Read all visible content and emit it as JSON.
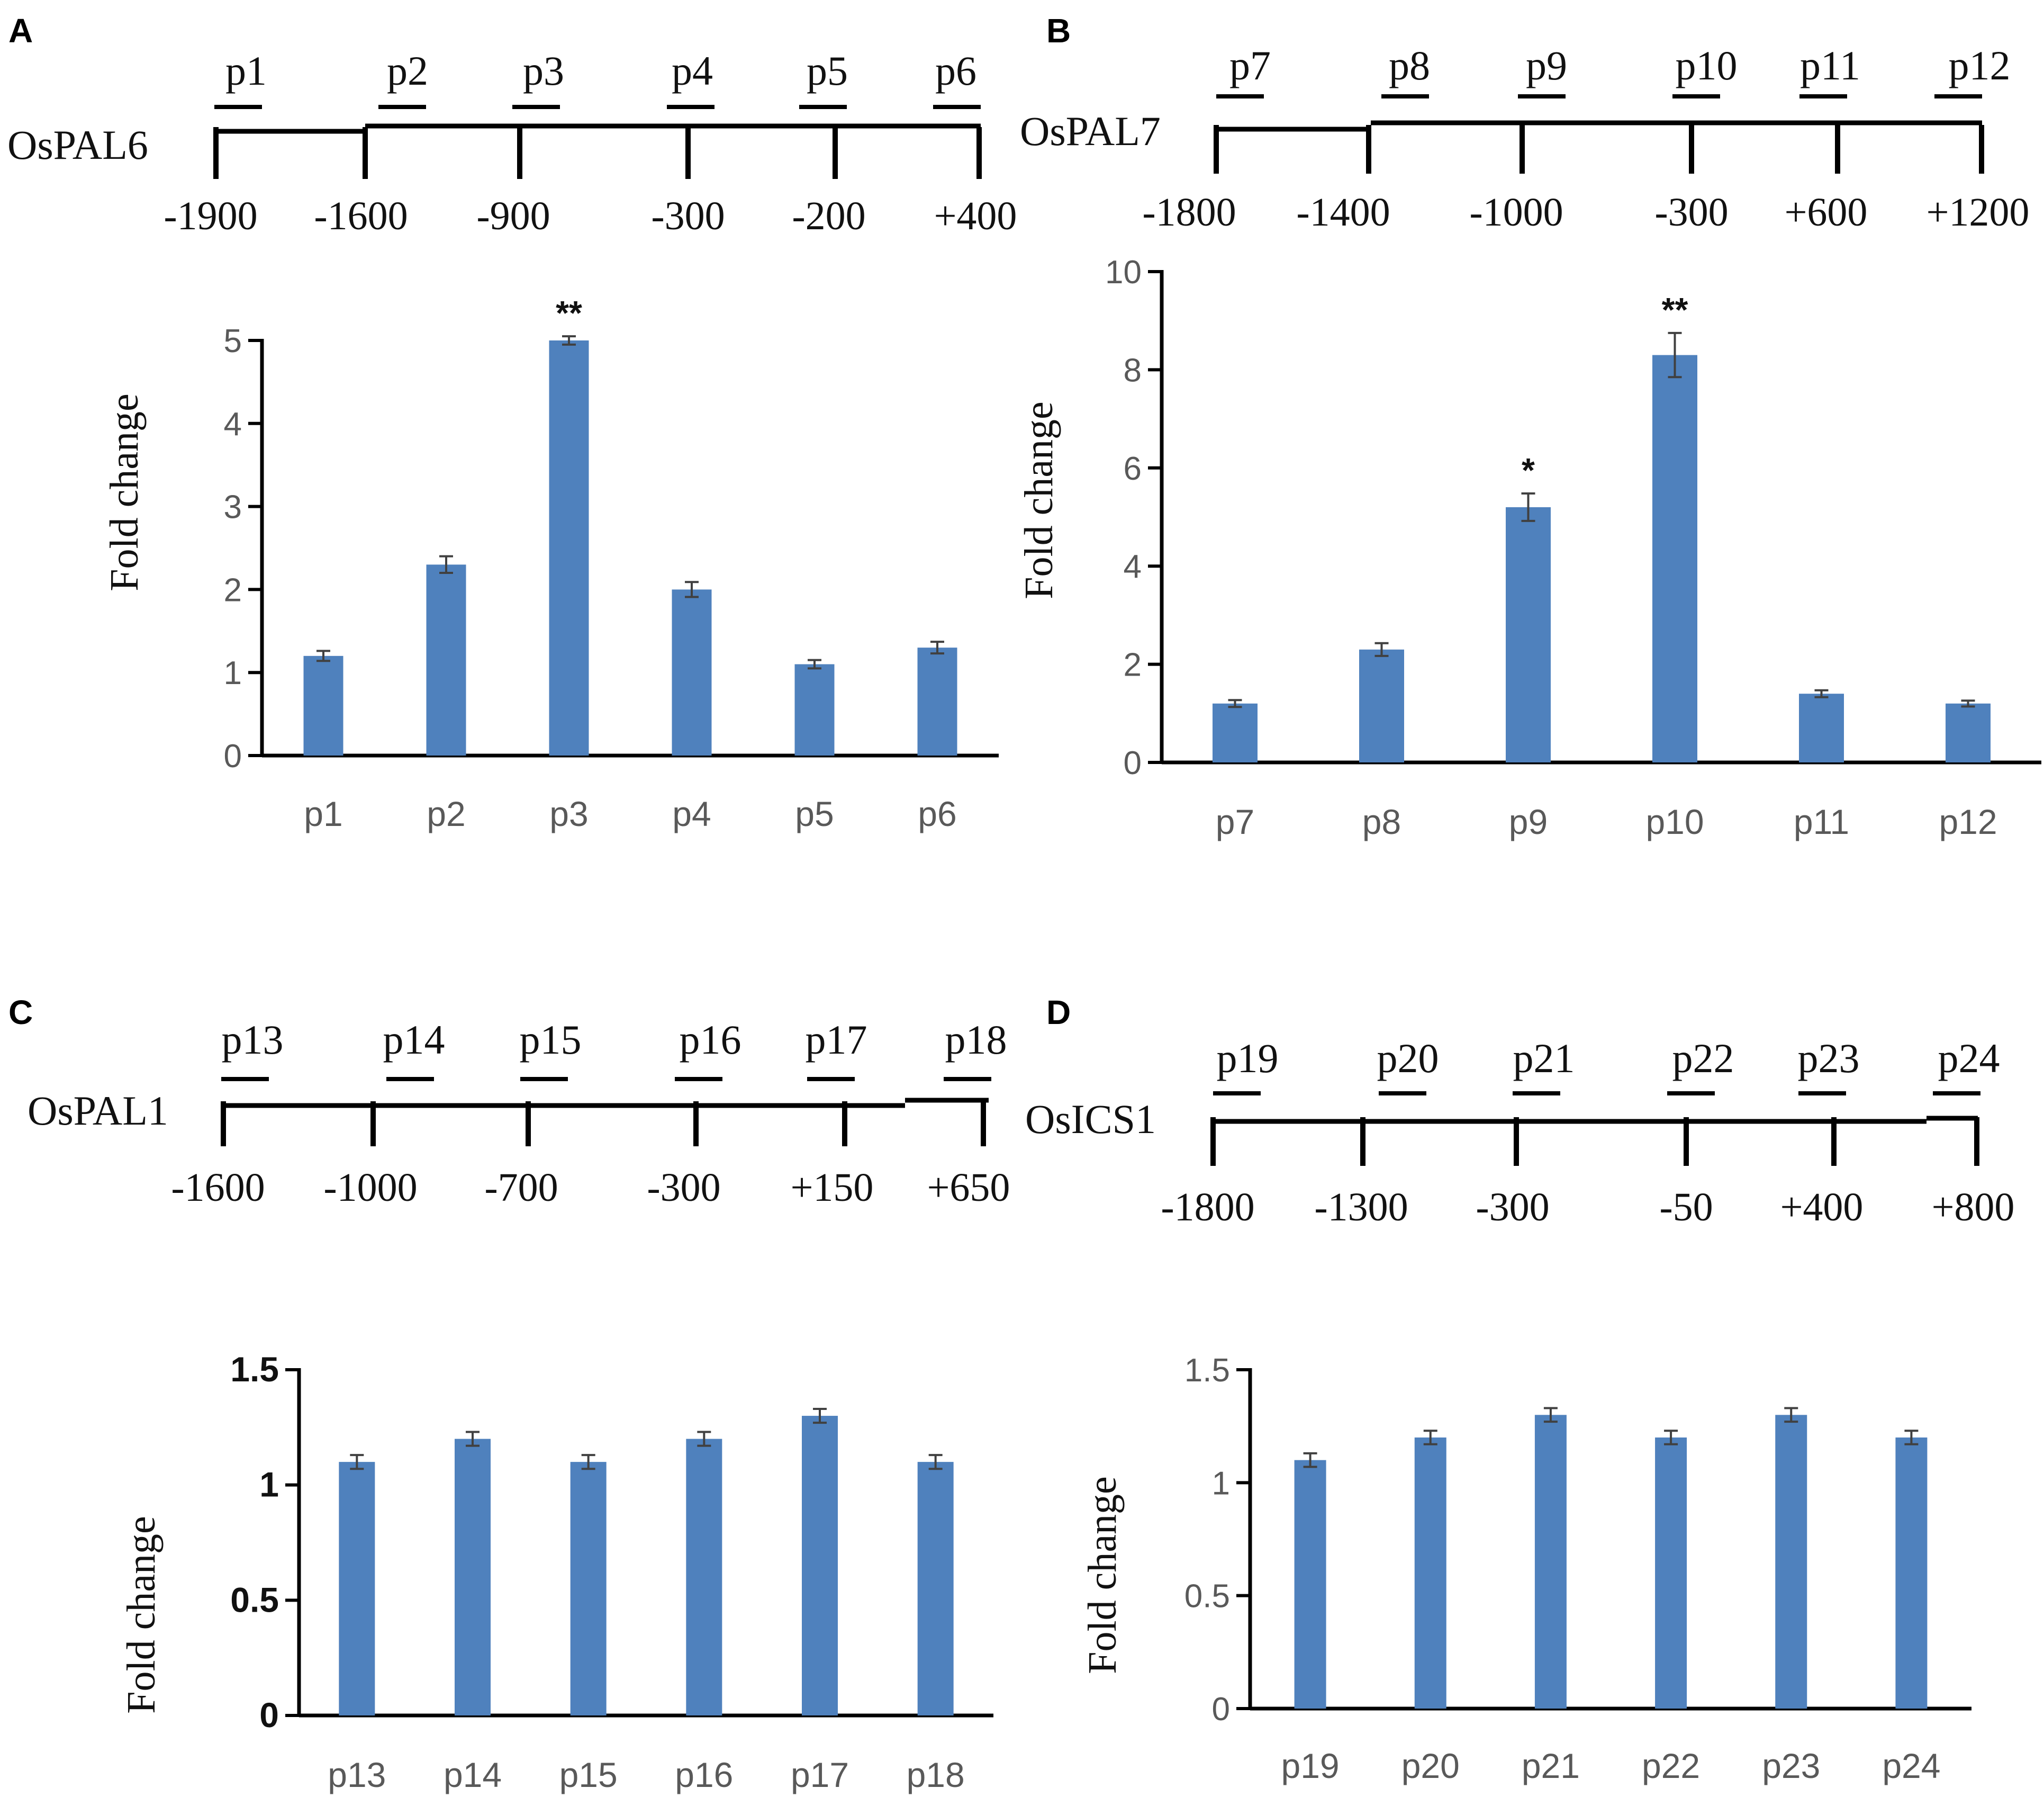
{
  "chart_data": [
    {
      "panel": "A",
      "type": "bar",
      "gene": "OsPAL6",
      "primers": [
        "p1",
        "p2",
        "p3",
        "p4",
        "p5",
        "p6"
      ],
      "positions": [
        "-1900",
        "-1600",
        "-900",
        "-300",
        "-200",
        "+400"
      ],
      "categories": [
        "p1",
        "p2",
        "p3",
        "p4",
        "p5",
        "p6"
      ],
      "values": [
        1.2,
        2.3,
        5.0,
        2.0,
        1.1,
        1.3
      ],
      "errors": [
        0.06,
        0.1,
        0.05,
        0.09,
        0.05,
        0.07
      ],
      "significance": [
        "",
        "",
        "**",
        "",
        "",
        ""
      ],
      "ylabel": "Fold change",
      "ylim": [
        0,
        5
      ],
      "yticks": [
        "0",
        "1",
        "2",
        "3",
        "4",
        "5"
      ],
      "bar_color": "#4f81bd"
    },
    {
      "panel": "B",
      "type": "bar",
      "gene": "OsPAL7",
      "primers": [
        "p7",
        "p8",
        "p9",
        "p10",
        "p11",
        "p12"
      ],
      "positions": [
        "-1800",
        "-1400",
        "-1000",
        "-300",
        "+600",
        "+1200"
      ],
      "categories": [
        "p7",
        "p8",
        "p9",
        "p10",
        "p11",
        "p12"
      ],
      "values": [
        1.2,
        2.3,
        5.2,
        8.3,
        1.4,
        1.2
      ],
      "errors": [
        0.07,
        0.13,
        0.28,
        0.45,
        0.07,
        0.06
      ],
      "significance": [
        "",
        "",
        "*",
        "**",
        "",
        ""
      ],
      "ylabel": "Fold change",
      "ylim": [
        0,
        10
      ],
      "yticks": [
        "0",
        "2",
        "4",
        "6",
        "8",
        "10"
      ],
      "bar_color": "#4f81bd"
    },
    {
      "panel": "C",
      "type": "bar",
      "gene": "OsPAL1",
      "primers": [
        "p13",
        "p14",
        "p15",
        "p16",
        "p17",
        "p18"
      ],
      "positions": [
        "-1600",
        "-1000",
        "-700",
        "-300",
        "+150",
        "+650"
      ],
      "categories": [
        "p13",
        "p14",
        "p15",
        "p16",
        "p17",
        "p18"
      ],
      "values": [
        1.1,
        1.2,
        1.1,
        1.2,
        1.3,
        1.1
      ],
      "errors": [
        0.03,
        0.03,
        0.03,
        0.03,
        0.03,
        0.03
      ],
      "significance": [
        "",
        "",
        "",
        "",
        "",
        ""
      ],
      "ylabel": "Fold change",
      "ylim": [
        0,
        1.5
      ],
      "yticks": [
        "0",
        "0.5",
        "1",
        "1.5"
      ],
      "bar_color": "#4f81bd"
    },
    {
      "panel": "D",
      "type": "bar",
      "gene": "OsICS1",
      "primers": [
        "p19",
        "p20",
        "p21",
        "p22",
        "p23",
        "p24"
      ],
      "positions": [
        "-1800",
        "-1300",
        "-300",
        "-50",
        "+400",
        "+800"
      ],
      "categories": [
        "p19",
        "p20",
        "p21",
        "p22",
        "p23",
        "p24"
      ],
      "values": [
        1.1,
        1.2,
        1.3,
        1.2,
        1.3,
        1.2
      ],
      "errors": [
        0.03,
        0.03,
        0.03,
        0.03,
        0.03,
        0.03
      ],
      "significance": [
        "",
        "",
        "",
        "",
        "",
        ""
      ],
      "ylabel": "Fold change",
      "ylim": [
        0,
        1.5
      ],
      "yticks": [
        "0",
        "0.5",
        "1",
        "1.5"
      ],
      "bar_color": "#4f81bd"
    }
  ]
}
